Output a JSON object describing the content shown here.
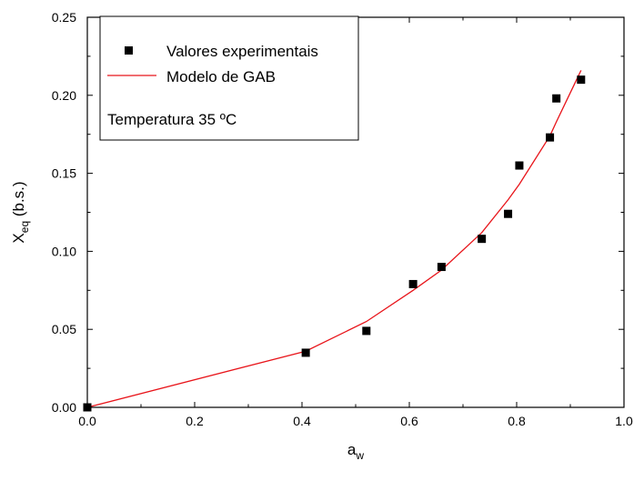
{
  "chart_data": {
    "type": "scatter",
    "annotation": "Temperatura 35 ºC",
    "xlabel": {
      "main": "a",
      "sub": "w"
    },
    "ylabel": {
      "main": "X",
      "sub": "eq",
      "suffix": " (b.s.)"
    },
    "xlim": [
      0.0,
      1.0
    ],
    "ylim": [
      0.0,
      0.25
    ],
    "x_ticks": [
      0.0,
      0.2,
      0.4,
      0.6,
      0.8,
      1.0
    ],
    "x_tick_labels": [
      "0.0",
      "0.2",
      "0.4",
      "0.6",
      "0.8",
      "1.0"
    ],
    "y_ticks": [
      0.0,
      0.05,
      0.1,
      0.15,
      0.2,
      0.25
    ],
    "y_tick_labels": [
      "0.00",
      "0.05",
      "0.10",
      "0.15",
      "0.20",
      "0.25"
    ],
    "grid": false,
    "legend_position": "top-left",
    "series": [
      {
        "name": "Valores experimentais",
        "kind": "scatter",
        "marker": "square",
        "color": "#000000",
        "x": [
          0.0,
          0.407,
          0.52,
          0.607,
          0.66,
          0.735,
          0.784,
          0.805,
          0.862,
          0.874,
          0.92
        ],
        "y": [
          0.0,
          0.035,
          0.049,
          0.079,
          0.09,
          0.108,
          0.124,
          0.155,
          0.173,
          0.198,
          0.21
        ]
      },
      {
        "name": "Modelo de GAB",
        "kind": "line",
        "color": "#e8141a",
        "x": [
          0.0,
          0.407,
          0.52,
          0.607,
          0.66,
          0.735,
          0.784,
          0.805,
          0.862,
          0.874,
          0.92
        ],
        "y": [
          0.0,
          0.036,
          0.055,
          0.075,
          0.088,
          0.112,
          0.133,
          0.143,
          0.174,
          0.183,
          0.216
        ]
      }
    ]
  }
}
